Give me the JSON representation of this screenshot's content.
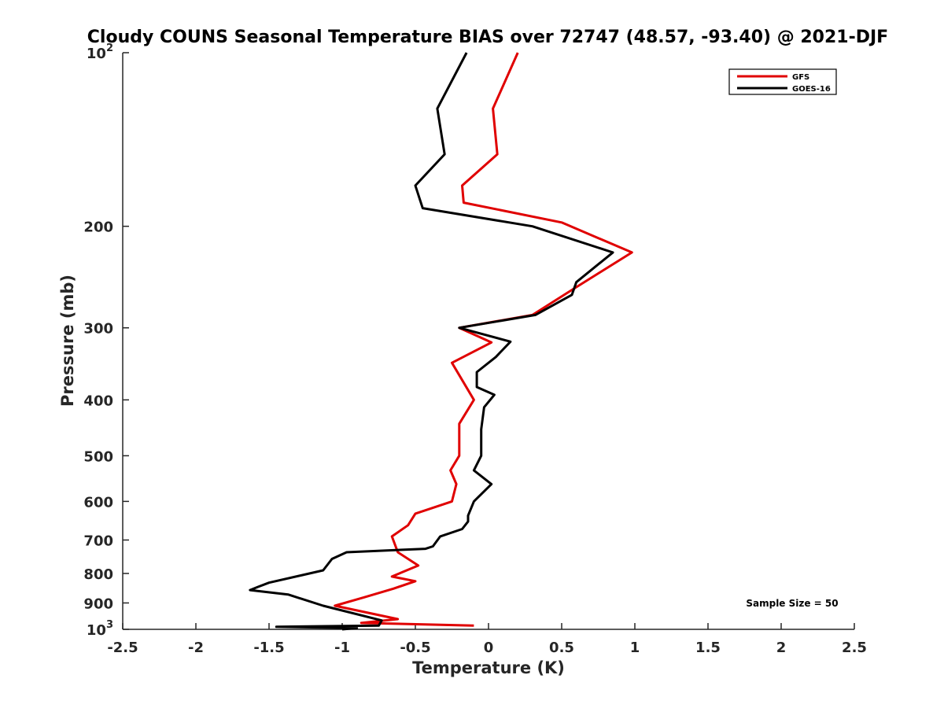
{
  "chart_data": {
    "type": "line",
    "title": "Cloudy COUNS Seasonal Temperature BIAS over 72747 (48.57, -93.40) @ 2021-DJF",
    "xlabel": "Temperature (K)",
    "ylabel": "Pressure (mb)",
    "xlim": [
      -2.5,
      2.5
    ],
    "ylim": [
      100,
      1000
    ],
    "y_scale": "log",
    "y_reversed": true,
    "grid": false,
    "legend_position": "top-right",
    "x_ticks": [
      "-2.5",
      "-2",
      "-1.5",
      "-1",
      "-0.5",
      "0",
      "0.5",
      "1",
      "1.5",
      "2",
      "2.5"
    ],
    "y_ticks": [
      {
        "base": "10",
        "exp": "2"
      },
      {
        "base": "200",
        "exp": ""
      },
      {
        "base": "300",
        "exp": ""
      },
      {
        "base": "400",
        "exp": ""
      },
      {
        "base": "500",
        "exp": ""
      },
      {
        "base": "600",
        "exp": ""
      },
      {
        "base": "700",
        "exp": ""
      },
      {
        "base": "800",
        "exp": ""
      },
      {
        "base": "900",
        "exp": ""
      },
      {
        "base": "10",
        "exp": "3"
      }
    ],
    "annotation": "Sample Size = 50",
    "series": [
      {
        "name": "GFS",
        "color": "#e00000",
        "x": [
          0.2,
          0.03,
          0.06,
          -0.18,
          -0.17,
          0.5,
          0.98,
          0.6,
          0.3,
          -0.2,
          0.02,
          -0.25,
          -0.1,
          -0.2,
          -0.2,
          -0.26,
          -0.22,
          -0.25,
          -0.5,
          -0.55,
          -0.66,
          -0.62,
          -0.48,
          -0.66,
          -0.5,
          -0.65,
          -0.85,
          -1.05,
          -0.62,
          -0.87,
          -0.1
        ],
        "y": [
          100,
          125,
          150,
          170,
          182,
          197,
          222,
          255,
          285,
          300,
          318,
          345,
          400,
          440,
          500,
          530,
          560,
          600,
          630,
          660,
          690,
          735,
          775,
          810,
          825,
          850,
          880,
          910,
          960,
          975,
          985
        ]
      },
      {
        "name": "GOES-16",
        "color": "#000000",
        "x": [
          -0.15,
          -0.35,
          -0.3,
          -0.5,
          -0.45,
          0.3,
          0.85,
          0.6,
          0.57,
          0.32,
          -0.2,
          0.15,
          0.05,
          -0.08,
          -0.08,
          0.04,
          -0.03,
          -0.05,
          -0.05,
          -0.1,
          0.02,
          -0.1,
          -0.14,
          -0.14,
          -0.18,
          -0.33,
          -0.38,
          -0.43,
          -0.97,
          -1.07,
          -1.13,
          -1.5,
          -1.58,
          -1.63,
          -1.37,
          -1.13,
          -0.73,
          -0.75,
          -1.45,
          -0.9,
          -1.0
        ],
        "y": [
          100,
          125,
          150,
          170,
          186,
          200,
          222,
          250,
          263,
          285,
          300,
          317,
          337,
          358,
          380,
          392,
          412,
          450,
          500,
          530,
          560,
          600,
          635,
          650,
          670,
          690,
          718,
          725,
          735,
          755,
          790,
          830,
          845,
          855,
          870,
          910,
          965,
          985,
          990,
          995,
          1000
        ]
      }
    ]
  }
}
